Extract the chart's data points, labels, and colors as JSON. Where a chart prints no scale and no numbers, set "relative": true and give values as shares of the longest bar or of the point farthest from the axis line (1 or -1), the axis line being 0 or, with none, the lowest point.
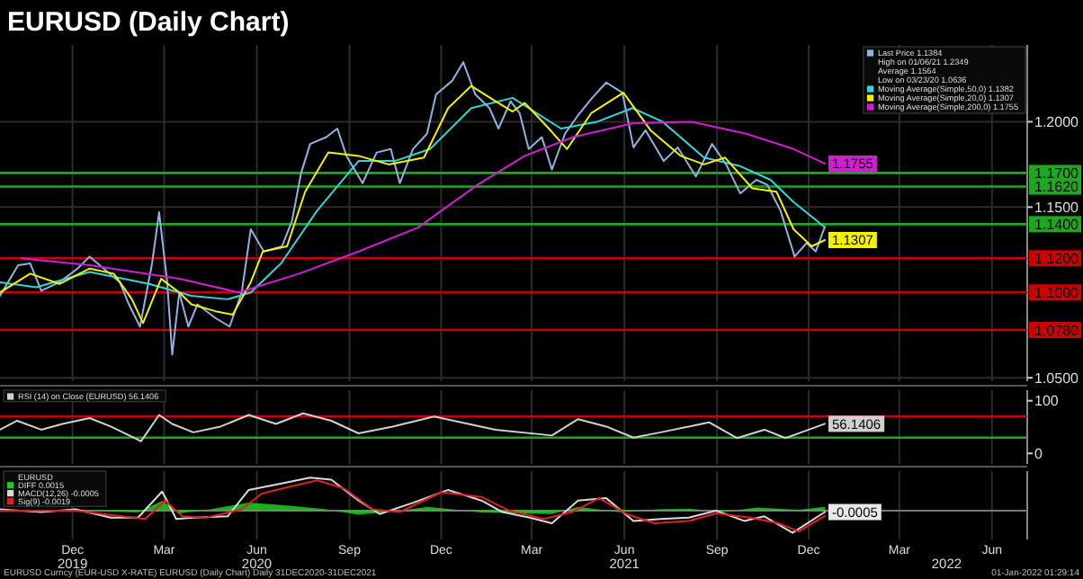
{
  "chart_data": [
    {
      "type": "line",
      "title": "EURUSD (Daily Chart)",
      "xlim": [
        "2019-10-04",
        "2022-07-20"
      ],
      "ylim": [
        1.048,
        1.245
      ],
      "xticks": [
        {
          "value": "2019-12-15",
          "label": null
        },
        {
          "value": "2020-03-15",
          "label": null
        },
        {
          "value": "2020-06-15",
          "label": null
        },
        {
          "value": "2020-09-15",
          "label": null
        },
        {
          "value": "2020-12-15",
          "label": null
        },
        {
          "value": "2021-03-15",
          "label": null
        },
        {
          "value": "2021-06-15",
          "label": null
        },
        {
          "value": "2021-09-15",
          "label": null
        },
        {
          "value": "2021-12-15",
          "label": null
        },
        {
          "value": "2022-03-15",
          "label": null
        },
        {
          "value": "2022-06-15",
          "label": null
        }
      ],
      "yticks": [
        {
          "value": 1.05,
          "label": "1.0500"
        },
        {
          "value": 1.15,
          "label": "1.1500"
        },
        {
          "value": 1.2,
          "label": "1.2000"
        }
      ],
      "tick_labels": "y",
      "grid": true,
      "legend": "top right",
      "annotations": [
        "High on 01/06/21 1.2349",
        "Average 1.1564",
        "Low on 03/23/20 1.0636"
      ],
      "ref_lines": [
        {
          "axis": "y",
          "value": 1.17,
          "label": "1.1700",
          "color": "#1fa81f"
        },
        {
          "axis": "y",
          "value": 1.162,
          "label": "1.1620",
          "color": "#1fa81f"
        },
        {
          "axis": "y",
          "value": 1.14,
          "label": "1.1400",
          "color": "#1fa81f"
        },
        {
          "axis": "y",
          "value": 1.12,
          "label": "1.1200",
          "color": "#cc0000"
        },
        {
          "axis": "y",
          "value": 1.1,
          "label": "1.1000",
          "color": "#cc0000"
        },
        {
          "axis": "y",
          "value": 1.078,
          "label": "1.0780",
          "color": "#cc0000"
        }
      ],
      "series": [
        {
          "name": "Last Price 1.1384",
          "color": "#8fb3e0",
          "x": [
            "2019-10-04",
            "2019-10-22",
            "2019-11-03",
            "2019-11-14",
            "2019-12-02",
            "2019-12-20",
            "2020-01-01",
            "2020-01-15",
            "2020-01-31",
            "2020-02-09",
            "2020-02-20",
            "2020-03-03",
            "2020-03-10",
            "2020-03-18",
            "2020-03-23",
            "2020-03-30",
            "2020-04-08",
            "2020-04-17",
            "2020-05-05",
            "2020-05-19",
            "2020-05-31",
            "2020-06-09",
            "2020-06-22",
            "2020-07-10",
            "2020-07-20",
            "2020-07-29",
            "2020-08-07",
            "2020-08-23",
            "2020-09-03",
            "2020-09-12",
            "2020-09-28",
            "2020-10-12",
            "2020-10-26",
            "2020-11-04",
            "2020-11-17",
            "2020-12-01",
            "2020-12-10",
            "2020-12-26",
            "2021-01-06",
            "2021-01-18",
            "2021-02-01",
            "2021-02-10",
            "2021-02-22",
            "2021-03-03",
            "2021-03-12",
            "2021-03-25",
            "2021-04-04",
            "2021-04-17",
            "2021-04-29",
            "2021-05-14",
            "2021-05-28",
            "2021-06-13",
            "2021-06-24",
            "2021-07-06",
            "2021-07-24",
            "2021-08-07",
            "2021-08-25",
            "2021-09-10",
            "2021-09-24",
            "2021-10-08",
            "2021-10-24",
            "2021-11-04",
            "2021-11-17",
            "2021-12-01",
            "2021-12-13",
            "2021-12-22",
            "2021-12-31"
          ],
          "values": [
            1.098,
            1.116,
            1.117,
            1.101,
            1.106,
            1.114,
            1.121,
            1.114,
            1.106,
            1.093,
            1.08,
            1.117,
            1.147,
            1.106,
            1.0636,
            1.1,
            1.08,
            1.093,
            1.085,
            1.08,
            1.1,
            1.137,
            1.124,
            1.127,
            1.142,
            1.17,
            1.187,
            1.191,
            1.196,
            1.18,
            1.164,
            1.182,
            1.184,
            1.164,
            1.184,
            1.193,
            1.216,
            1.224,
            1.2349,
            1.216,
            1.208,
            1.196,
            1.212,
            1.205,
            1.184,
            1.191,
            1.172,
            1.193,
            1.203,
            1.214,
            1.223,
            1.217,
            1.185,
            1.195,
            1.177,
            1.185,
            1.168,
            1.187,
            1.175,
            1.158,
            1.166,
            1.163,
            1.148,
            1.121,
            1.129,
            1.124,
            1.1384
          ]
        },
        {
          "name": "Moving Average(Simple,50,0) 1.1382",
          "color": "#33d6d6",
          "x": [
            "2019-10-04",
            "2019-11-09",
            "2020-01-01",
            "2020-02-29",
            "2020-04-11",
            "2020-05-17",
            "2020-06-09",
            "2020-07-09",
            "2020-08-14",
            "2020-09-24",
            "2020-10-30",
            "2020-12-04",
            "2021-01-14",
            "2021-02-24",
            "2021-04-13",
            "2021-05-19",
            "2021-06-23",
            "2021-07-23",
            "2021-09-02",
            "2021-10-08",
            "2021-11-07",
            "2021-11-30",
            "2021-12-31"
          ],
          "values": [
            1.106,
            1.103,
            1.112,
            1.105,
            1.098,
            1.096,
            1.1,
            1.117,
            1.148,
            1.177,
            1.177,
            1.184,
            1.208,
            1.214,
            1.196,
            1.2,
            1.208,
            1.2,
            1.179,
            1.174,
            1.166,
            1.153,
            1.1382
          ]
        },
        {
          "name": "Moving Average(Simple,20,0) 1.1307",
          "color": "#f2f200",
          "x": [
            "2019-10-04",
            "2019-11-03",
            "2019-12-02",
            "2020-01-01",
            "2020-01-25",
            "2020-02-12",
            "2020-02-23",
            "2020-03-12",
            "2020-03-30",
            "2020-04-11",
            "2020-05-05",
            "2020-05-22",
            "2020-06-09",
            "2020-06-21",
            "2020-07-15",
            "2020-08-02",
            "2020-08-25",
            "2020-09-24",
            "2020-10-24",
            "2020-11-28",
            "2020-12-22",
            "2021-01-14",
            "2021-02-07",
            "2021-02-24",
            "2021-03-08",
            "2021-04-01",
            "2021-04-19",
            "2021-05-13",
            "2021-06-14",
            "2021-07-11",
            "2021-08-10",
            "2021-09-02",
            "2021-09-23",
            "2021-10-20",
            "2021-11-13",
            "2021-11-30",
            "2021-12-18",
            "2021-12-31"
          ],
          "values": [
            1.1,
            1.111,
            1.105,
            1.114,
            1.111,
            1.096,
            1.082,
            1.108,
            1.1,
            1.093,
            1.089,
            1.087,
            1.106,
            1.124,
            1.127,
            1.159,
            1.182,
            1.18,
            1.175,
            1.179,
            1.208,
            1.221,
            1.212,
            1.206,
            1.211,
            1.196,
            1.184,
            1.205,
            1.217,
            1.195,
            1.18,
            1.175,
            1.179,
            1.161,
            1.159,
            1.137,
            1.127,
            1.1307
          ],
          "value_labels": [
            null,
            null,
            null,
            null,
            null,
            null,
            null,
            null,
            null,
            null,
            null,
            null,
            null,
            null,
            null,
            null,
            null,
            null,
            null,
            null,
            null,
            null,
            null,
            null,
            null,
            null,
            null,
            null,
            null,
            null,
            null,
            null,
            null,
            null,
            null,
            null,
            null,
            "1.1307"
          ]
        },
        {
          "name": "Moving Average(Simple,200,0) 1.1755",
          "color": "#d21ed2",
          "x": [
            "2019-10-25",
            "2020-01-01",
            "2020-03-30",
            "2020-05-28",
            "2020-07-27",
            "2020-09-24",
            "2020-11-22",
            "2021-01-20",
            "2021-03-08",
            "2021-04-25",
            "2021-06-23",
            "2021-08-21",
            "2021-10-14",
            "2021-11-30",
            "2021-12-31"
          ],
          "values": [
            1.12,
            1.116,
            1.108,
            1.1,
            1.111,
            1.124,
            1.138,
            1.163,
            1.18,
            1.191,
            1.199,
            1.2,
            1.193,
            1.184,
            1.1755
          ],
          "value_labels": [
            null,
            null,
            null,
            null,
            null,
            null,
            null,
            null,
            null,
            null,
            null,
            null,
            null,
            null,
            "1.1755"
          ]
        }
      ]
    },
    {
      "type": "line",
      "xlim": [
        "2019-10-04",
        "2022-07-20"
      ],
      "ylim": [
        -20,
        120
      ],
      "yticks": [
        0,
        100
      ],
      "tick_labels": "y",
      "grid": "x",
      "legend": "top left",
      "xticks": [
        {
          "value": "2019-12-15",
          "label": null
        },
        {
          "value": "2020-03-15",
          "label": null
        },
        {
          "value": "2020-06-15",
          "label": null
        },
        {
          "value": "2020-09-15",
          "label": null
        },
        {
          "value": "2020-12-15",
          "label": null
        },
        {
          "value": "2021-03-15",
          "label": null
        },
        {
          "value": "2021-06-15",
          "label": null
        },
        {
          "value": "2021-09-15",
          "label": null
        },
        {
          "value": "2021-12-15",
          "label": null
        },
        {
          "value": "2022-03-15",
          "label": null
        },
        {
          "value": "2022-06-15",
          "label": null
        }
      ],
      "ref_lines": [
        {
          "axis": "y",
          "value": 70,
          "label": null,
          "color": "#cc0000"
        },
        {
          "axis": "y",
          "value": 30,
          "label": null,
          "color": "#1fa81f"
        }
      ],
      "series": [
        {
          "name": "RSI (14) on Close (EURUSD) 56.1406",
          "color": "#d0d0d0",
          "x": [
            "2019-10-04",
            "2019-10-21",
            "2019-11-14",
            "2019-12-05",
            "2020-01-01",
            "2020-01-22",
            "2020-02-15",
            "2020-02-21",
            "2020-03-10",
            "2020-03-23",
            "2020-04-13",
            "2020-05-10",
            "2020-06-07",
            "2020-07-04",
            "2020-07-31",
            "2020-08-28",
            "2020-09-24",
            "2020-10-28",
            "2020-12-08",
            "2021-01-11",
            "2021-02-07",
            "2021-04-04",
            "2021-04-30",
            "2021-05-28",
            "2021-06-24",
            "2021-07-21",
            "2021-08-18",
            "2021-09-07",
            "2021-10-05",
            "2021-11-01",
            "2021-11-22",
            "2021-12-12",
            "2021-12-31"
          ],
          "values": [
            45,
            62,
            45,
            56,
            67,
            51,
            29,
            23,
            73,
            56,
            40,
            51,
            73,
            56,
            76,
            62,
            38,
            51,
            70,
            56,
            45,
            34,
            65,
            51,
            30,
            40,
            51,
            59,
            29,
            45,
            29,
            43,
            56.1406
          ],
          "value_labels": [
            null,
            null,
            null,
            null,
            null,
            null,
            null,
            null,
            null,
            null,
            null,
            null,
            null,
            null,
            null,
            null,
            null,
            null,
            null,
            null,
            null,
            null,
            null,
            null,
            null,
            null,
            null,
            null,
            null,
            null,
            null,
            null,
            "56.1406"
          ]
        }
      ]
    },
    {
      "type": "line",
      "relative": true,
      "xlim": [
        "2019-10-04",
        "2022-07-20"
      ],
      "tick_labels": "x",
      "grid": "x",
      "legend": "top left",
      "legend_title": "EURUSD",
      "xticks": [
        {
          "value": "2019-12-15",
          "label": "Dec"
        },
        {
          "value": "2020-03-15",
          "label": "Mar"
        },
        {
          "value": "2020-06-15",
          "label": "Jun"
        },
        {
          "value": "2020-09-15",
          "label": "Sep"
        },
        {
          "value": "2020-12-15",
          "label": "Dec"
        },
        {
          "value": "2021-03-15",
          "label": "Mar"
        },
        {
          "value": "2021-06-15",
          "label": "Jun"
        },
        {
          "value": "2021-09-15",
          "label": "Sep"
        },
        {
          "value": "2021-12-15",
          "label": "Dec"
        },
        {
          "value": "2022-03-15",
          "label": "Mar"
        },
        {
          "value": "2022-06-15",
          "label": "Jun"
        }
      ],
      "x2lim": [
        "2019-10-04",
        "2022-07-20"
      ],
      "x2ticks": [
        {
          "value": "2019-12-15",
          "label": "2019"
        },
        {
          "value": "2020-06-15",
          "label": "2020"
        },
        {
          "value": "2021-06-15",
          "label": "2021"
        },
        {
          "value": "2022-05-01",
          "label": "2022"
        }
      ],
      "annotations": [
        "EURUSD Curncy (EUR-USD X-RATE) EURUSD (Daily Chart)  Daily 31DEC2020-31DEC2021",
        "01-Jan-2022 01:29:14",
        {
          "text": "-0.0005",
          "x": "2021-12-31",
          "y": -0.04
        }
      ],
      "series": [
        {
          "name": "DIFF 0.0015",
          "type": "area",
          "color": "#22cc22",
          "x": [
            "2019-10-04",
            "2019-12-11",
            "2020-02-18",
            "2020-03-13",
            "2020-03-30",
            "2020-04-26",
            "2020-06-07",
            "2020-07-18",
            "2020-08-21",
            "2020-09-24",
            "2020-11-04",
            "2020-12-02",
            "2021-01-24",
            "2021-03-06",
            "2021-04-04",
            "2021-04-30",
            "2021-06-10",
            "2021-07-21",
            "2021-08-18",
            "2021-09-21",
            "2021-10-25",
            "2021-12-05",
            "2021-12-31"
          ],
          "values": [
            0,
            0.02,
            -0.05,
            0.3,
            -0.08,
            0.02,
            0.25,
            0.15,
            0.05,
            -0.12,
            0,
            0.12,
            -0.05,
            -0.08,
            -0.1,
            0.12,
            -0.04,
            0.05,
            0.06,
            -0.03,
            0.1,
            0.03,
            0.12
          ]
        },
        {
          "name": "MACD(12,26) -0.0005",
          "color": "#d9d9d9",
          "x": [
            "2019-10-04",
            "2019-11-14",
            "2019-12-18",
            "2020-01-22",
            "2020-02-18",
            "2020-03-13",
            "2020-03-27",
            "2020-04-13",
            "2020-05-17",
            "2020-06-07",
            "2020-07-04",
            "2020-08-07",
            "2020-08-28",
            "2020-09-24",
            "2020-10-15",
            "2020-11-18",
            "2020-12-22",
            "2021-01-24",
            "2021-02-14",
            "2021-03-13",
            "2021-04-04",
            "2021-04-30",
            "2021-05-28",
            "2021-06-24",
            "2021-07-21",
            "2021-08-18",
            "2021-09-14",
            "2021-10-12",
            "2021-11-01",
            "2021-11-29",
            "2021-12-31"
          ],
          "values": [
            0.04,
            -0.04,
            0.04,
            -0.21,
            -0.21,
            0.58,
            -0.25,
            -0.21,
            -0.17,
            0.63,
            0.79,
            1,
            0.94,
            0.31,
            -0.1,
            0.25,
            0.63,
            0.31,
            -0.04,
            -0.21,
            -0.38,
            0.31,
            0.38,
            -0.31,
            -0.25,
            -0.21,
            0,
            -0.31,
            -0.17,
            -0.67,
            -0.04
          ]
        },
        {
          "name": "Sig(9) -0.0019",
          "color": "#e02020",
          "x": [
            "2019-10-04",
            "2019-11-14",
            "2019-12-18",
            "2020-01-22",
            "2020-02-25",
            "2020-03-16",
            "2020-04-02",
            "2020-04-26",
            "2020-05-31",
            "2020-06-20",
            "2020-07-18",
            "2020-08-14",
            "2020-09-10",
            "2020-10-08",
            "2020-11-04",
            "2020-12-15",
            "2021-01-24",
            "2021-02-21",
            "2021-03-27",
            "2021-04-24",
            "2021-05-21",
            "2021-06-17",
            "2021-07-15",
            "2021-08-18",
            "2021-09-14",
            "2021-10-18",
            "2021-11-15",
            "2021-12-05",
            "2021-12-31"
          ],
          "values": [
            0,
            0,
            0,
            -0.13,
            -0.25,
            0.31,
            -0.17,
            -0.21,
            0.04,
            0.52,
            0.73,
            0.92,
            0.67,
            0.04,
            -0.04,
            0.56,
            0.42,
            0,
            -0.25,
            -0.04,
            0.38,
            -0.1,
            -0.38,
            -0.31,
            -0.08,
            -0.21,
            -0.38,
            -0.63,
            -0.16
          ]
        }
      ]
    }
  ]
}
